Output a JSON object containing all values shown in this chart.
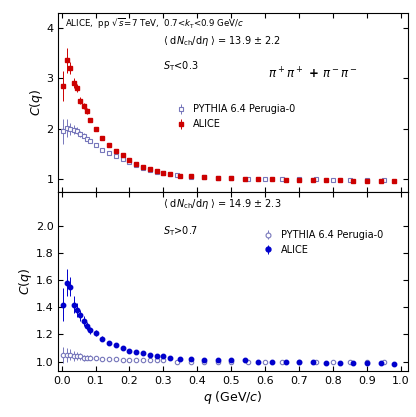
{
  "title_line": "ALICE,  pp $\\sqrt{s}$=7 TeV,  0.7<$k_{\\mathrm{T}}$<0.9 GeV/$c$",
  "xlabel": "$q$ (GeV/$c$)",
  "panel1": {
    "ann1": "$\\langle$ d$N_{\\mathrm{ch}}$/d$\\eta$ $\\rangle$ = 13.9 ± 2.2",
    "ann2": "$S_{\\mathrm{T}}$<0.3",
    "pi_label": "$\\pi^+\\pi^+$ + $\\pi^-\\pi^-$",
    "ylim": [
      0.75,
      4.3
    ],
    "yticks": [
      1,
      2,
      3,
      4
    ],
    "alice_color": "#cc0000",
    "pythia_color": "#7777bb",
    "alice_data_q": [
      0.005,
      0.015,
      0.025,
      0.035,
      0.045,
      0.055,
      0.065,
      0.075,
      0.085,
      0.1,
      0.12,
      0.14,
      0.16,
      0.18,
      0.2,
      0.22,
      0.24,
      0.26,
      0.28,
      0.3,
      0.32,
      0.35,
      0.38,
      0.42,
      0.46,
      0.5,
      0.54,
      0.58,
      0.62,
      0.66,
      0.7,
      0.74,
      0.78,
      0.82,
      0.86,
      0.9,
      0.94,
      0.98
    ],
    "alice_data_c": [
      2.85,
      3.35,
      3.2,
      2.9,
      2.8,
      2.55,
      2.45,
      2.35,
      2.18,
      2.0,
      1.82,
      1.68,
      1.55,
      1.48,
      1.38,
      1.3,
      1.25,
      1.2,
      1.17,
      1.13,
      1.1,
      1.07,
      1.06,
      1.04,
      1.03,
      1.02,
      1.01,
      1.0,
      1.0,
      0.99,
      0.99,
      0.98,
      0.98,
      0.98,
      0.97,
      0.97,
      0.96,
      0.96
    ],
    "alice_err": [
      0.3,
      0.25,
      0.12,
      0.1,
      0.08,
      0.07,
      0.06,
      0.05,
      0.04,
      0.04,
      0.03,
      0.025,
      0.022,
      0.02,
      0.018,
      0.016,
      0.015,
      0.014,
      0.013,
      0.012,
      0.011,
      0.01,
      0.01,
      0.009,
      0.009,
      0.008,
      0.008,
      0.007,
      0.007,
      0.007,
      0.006,
      0.006,
      0.006,
      0.006,
      0.005,
      0.005,
      0.005,
      0.005
    ],
    "pythia_data_q": [
      0.005,
      0.015,
      0.025,
      0.035,
      0.045,
      0.055,
      0.065,
      0.075,
      0.085,
      0.1,
      0.12,
      0.14,
      0.16,
      0.18,
      0.2,
      0.22,
      0.24,
      0.26,
      0.28,
      0.3,
      0.34,
      0.38,
      0.42,
      0.46,
      0.5,
      0.55,
      0.6,
      0.65,
      0.7,
      0.75,
      0.8,
      0.85,
      0.9,
      0.95
    ],
    "pythia_data_c": [
      1.95,
      2.02,
      2.0,
      1.98,
      1.96,
      1.9,
      1.86,
      1.8,
      1.75,
      1.68,
      1.58,
      1.52,
      1.45,
      1.4,
      1.35,
      1.28,
      1.22,
      1.18,
      1.15,
      1.12,
      1.08,
      1.05,
      1.04,
      1.03,
      1.02,
      1.01,
      1.01,
      1.0,
      1.0,
      1.0,
      0.99,
      0.99,
      0.99,
      0.99
    ],
    "pythia_err": [
      0.25,
      0.18,
      0.12,
      0.09,
      0.07,
      0.06,
      0.05,
      0.04,
      0.035,
      0.03,
      0.025,
      0.02,
      0.018,
      0.016,
      0.015,
      0.013,
      0.012,
      0.011,
      0.01,
      0.009,
      0.008,
      0.008,
      0.007,
      0.007,
      0.006,
      0.006,
      0.005,
      0.005,
      0.005,
      0.005,
      0.004,
      0.004,
      0.004,
      0.004
    ]
  },
  "panel2": {
    "ann1": "$\\langle$ d$N_{\\mathrm{ch}}$/d$\\eta$ $\\rangle$ = 14.9 ± 2.3",
    "ann2": "$S_{\\mathrm{T}}$>0.7",
    "ylim": [
      0.93,
      2.25
    ],
    "yticks": [
      1.0,
      1.2,
      1.4,
      1.6,
      1.8,
      2.0
    ],
    "alice_color": "#0000cc",
    "pythia_color": "#7777bb",
    "alice_data_q": [
      0.005,
      0.015,
      0.025,
      0.035,
      0.045,
      0.055,
      0.065,
      0.075,
      0.085,
      0.1,
      0.12,
      0.14,
      0.16,
      0.18,
      0.2,
      0.22,
      0.24,
      0.26,
      0.28,
      0.3,
      0.32,
      0.35,
      0.38,
      0.42,
      0.46,
      0.5,
      0.54,
      0.58,
      0.62,
      0.66,
      0.7,
      0.74,
      0.78,
      0.82,
      0.86,
      0.9,
      0.94,
      0.98
    ],
    "alice_data_c": [
      1.42,
      1.58,
      1.55,
      1.42,
      1.38,
      1.34,
      1.3,
      1.26,
      1.23,
      1.21,
      1.17,
      1.14,
      1.12,
      1.1,
      1.08,
      1.07,
      1.06,
      1.05,
      1.04,
      1.04,
      1.03,
      1.02,
      1.02,
      1.01,
      1.01,
      1.01,
      1.01,
      1.0,
      1.0,
      1.0,
      1.0,
      1.0,
      0.99,
      0.99,
      0.99,
      0.99,
      0.99,
      0.98
    ],
    "alice_err": [
      0.12,
      0.1,
      0.07,
      0.06,
      0.05,
      0.04,
      0.035,
      0.03,
      0.025,
      0.02,
      0.016,
      0.014,
      0.012,
      0.011,
      0.01,
      0.009,
      0.008,
      0.008,
      0.007,
      0.007,
      0.006,
      0.006,
      0.005,
      0.005,
      0.005,
      0.004,
      0.004,
      0.004,
      0.004,
      0.003,
      0.003,
      0.003,
      0.003,
      0.003,
      0.003,
      0.003,
      0.003,
      0.003
    ],
    "pythia_data_q": [
      0.005,
      0.015,
      0.025,
      0.035,
      0.045,
      0.055,
      0.065,
      0.075,
      0.085,
      0.1,
      0.12,
      0.14,
      0.16,
      0.18,
      0.2,
      0.22,
      0.24,
      0.26,
      0.28,
      0.3,
      0.34,
      0.38,
      0.42,
      0.46,
      0.5,
      0.55,
      0.6,
      0.65,
      0.7,
      0.75,
      0.8,
      0.85,
      0.9,
      0.95
    ],
    "pythia_data_c": [
      1.05,
      1.05,
      1.05,
      1.04,
      1.04,
      1.04,
      1.03,
      1.03,
      1.03,
      1.03,
      1.02,
      1.02,
      1.02,
      1.01,
      1.01,
      1.01,
      1.01,
      1.01,
      1.01,
      1.01,
      1.0,
      1.0,
      1.0,
      1.0,
      1.0,
      1.0,
      1.0,
      1.0,
      1.0,
      1.0,
      1.0,
      1.0,
      1.0,
      1.0
    ],
    "pythia_err": [
      0.06,
      0.05,
      0.04,
      0.035,
      0.03,
      0.025,
      0.022,
      0.02,
      0.018,
      0.015,
      0.012,
      0.01,
      0.009,
      0.008,
      0.007,
      0.007,
      0.006,
      0.006,
      0.005,
      0.005,
      0.004,
      0.004,
      0.004,
      0.003,
      0.003,
      0.003,
      0.003,
      0.003,
      0.003,
      0.003,
      0.002,
      0.002,
      0.002,
      0.002
    ]
  }
}
